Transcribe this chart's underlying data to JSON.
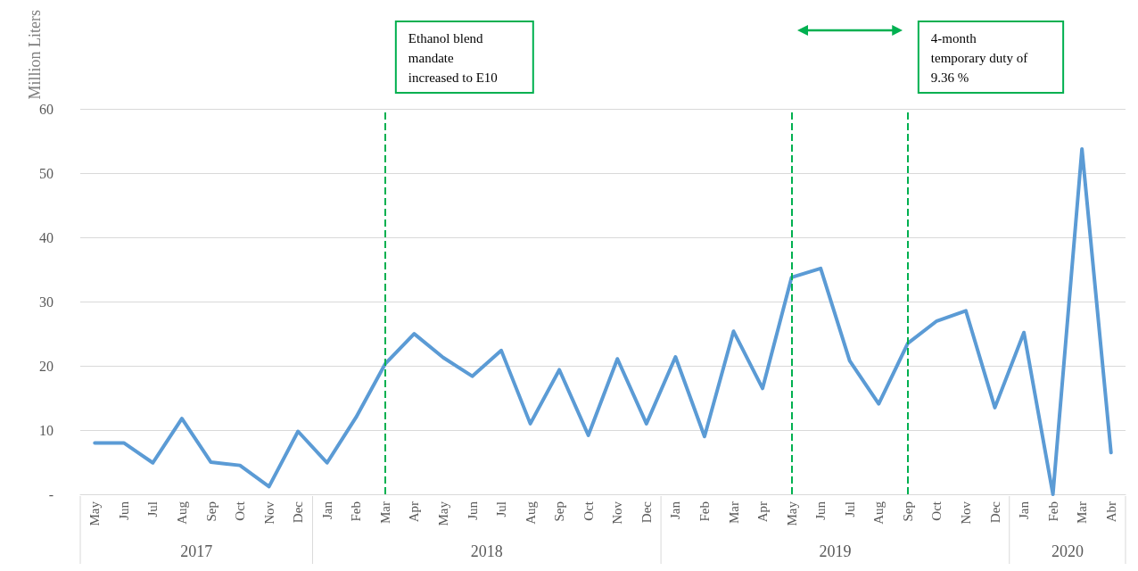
{
  "chart_data": {
    "type": "line",
    "ylabel": "Million Liters",
    "x": [
      "2017-05",
      "2017-06",
      "2017-07",
      "2017-08",
      "2017-09",
      "2017-10",
      "2017-11",
      "2017-12",
      "2018-01",
      "2018-02",
      "2018-03",
      "2018-04",
      "2018-05",
      "2018-06",
      "2018-07",
      "2018-08",
      "2018-09",
      "2018-10",
      "2018-11",
      "2018-12",
      "2019-01",
      "2019-02",
      "2019-03",
      "2019-04",
      "2019-05",
      "2019-06",
      "2019-07",
      "2019-08",
      "2019-09",
      "2019-10",
      "2019-11",
      "2019-12",
      "2020-01",
      "2020-02",
      "2020-03",
      "2020-04"
    ],
    "xticks": [
      {
        "value": "2017-05",
        "label": "May"
      },
      {
        "value": "2017-06",
        "label": "Jun"
      },
      {
        "value": "2017-07",
        "label": "Jul"
      },
      {
        "value": "2017-08",
        "label": "Aug"
      },
      {
        "value": "2017-09",
        "label": "Sep"
      },
      {
        "value": "2017-10",
        "label": "Oct"
      },
      {
        "value": "2017-11",
        "label": "Nov"
      },
      {
        "value": "2017-12",
        "label": "Dec"
      },
      {
        "value": "2018-01",
        "label": "Jan"
      },
      {
        "value": "2018-02",
        "label": "Feb"
      },
      {
        "value": "2018-03",
        "label": "Mar"
      },
      {
        "value": "2018-04",
        "label": "Apr"
      },
      {
        "value": "2018-05",
        "label": "May"
      },
      {
        "value": "2018-06",
        "label": "Jun"
      },
      {
        "value": "2018-07",
        "label": "Jul"
      },
      {
        "value": "2018-08",
        "label": "Aug"
      },
      {
        "value": "2018-09",
        "label": "Sep"
      },
      {
        "value": "2018-10",
        "label": "Oct"
      },
      {
        "value": "2018-11",
        "label": "Nov"
      },
      {
        "value": "2018-12",
        "label": "Dec"
      },
      {
        "value": "2019-01",
        "label": "Jan"
      },
      {
        "value": "2019-02",
        "label": "Feb"
      },
      {
        "value": "2019-03",
        "label": "Mar"
      },
      {
        "value": "2019-04",
        "label": "Apr"
      },
      {
        "value": "2019-05",
        "label": "May"
      },
      {
        "value": "2019-06",
        "label": "Jun"
      },
      {
        "value": "2019-07",
        "label": "Jul"
      },
      {
        "value": "2019-08",
        "label": "Aug"
      },
      {
        "value": "2019-09",
        "label": "Sep"
      },
      {
        "value": "2019-10",
        "label": "Oct"
      },
      {
        "value": "2019-11",
        "label": "Nov"
      },
      {
        "value": "2019-12",
        "label": "Dec"
      },
      {
        "value": "2020-01",
        "label": "Jan"
      },
      {
        "value": "2020-02",
        "label": "Feb"
      },
      {
        "value": "2020-03",
        "label": "Mar"
      },
      {
        "value": "2020-04",
        "label": "Abr"
      }
    ],
    "series": [
      {
        "color": "#5b9bd5",
        "values": [
          8,
          8,
          4.9,
          11.8,
          5,
          4.5,
          1.2,
          9.8,
          4.9,
          12,
          20.3,
          25,
          21.3,
          18.4,
          22.4,
          11,
          19.4,
          9.2,
          21.1,
          11,
          21.4,
          9,
          25.4,
          16.5,
          33.8,
          35.2,
          20.8,
          14.1,
          23.5,
          27,
          28.6,
          13.5,
          25.2,
          0,
          53.8,
          6.5
        ]
      }
    ],
    "xlim": [
      "2017-04-16",
      "2020-04-16"
    ],
    "ylim": [
      0,
      60
    ],
    "yticks": [
      {
        "value": 0,
        "label": "-"
      },
      10,
      20,
      30,
      40,
      50,
      60
    ],
    "grid": "y",
    "marker": "none",
    "line_style": "solid",
    "ref_lines": [
      {
        "axis": "x",
        "value": "2018-03",
        "color": "#00b050",
        "line_style": "dashed"
      },
      {
        "axis": "x",
        "value": "2019-05",
        "color": "#00b050",
        "line_style": "dashed"
      },
      {
        "axis": "x",
        "value": "2019-09",
        "color": "#00b050",
        "line_style": "dashed"
      }
    ],
    "annotations": [
      "Ethanol blend\nmandate\nincreased to E10",
      "4-month\ntemporary duty of\n9.36 %",
      "2017",
      "2018",
      "2019",
      "2020"
    ]
  }
}
